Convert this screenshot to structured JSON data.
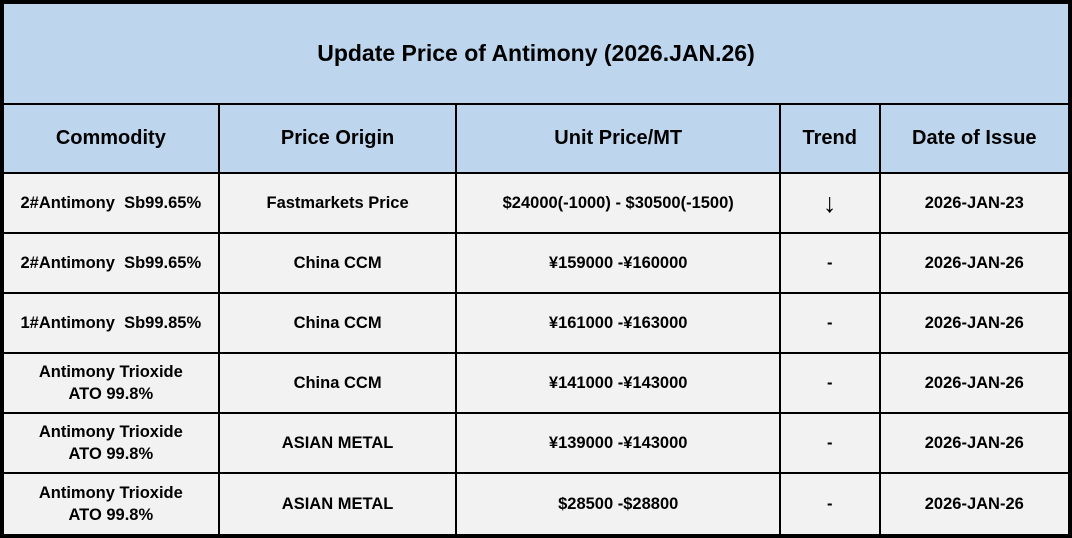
{
  "title": "Update Price of Antimony (2026.JAN.26)",
  "colors": {
    "header_bg": "#BDD6EE",
    "row_bg": "#F2F2F2",
    "border": "#000000",
    "text": "#000000"
  },
  "table": {
    "headers": {
      "commodity": "Commodity",
      "origin": "Price Origin",
      "price": "Unit Price/MT",
      "trend": "Trend",
      "date": "Date of Issue"
    },
    "rows": [
      {
        "commodity": "2#Antimony  Sb99.65%",
        "origin": "Fastmarkets Price",
        "price": "$24000(-1000) - $30500(-1500)",
        "trend": "↓",
        "date": "2026-JAN-23"
      },
      {
        "commodity": "2#Antimony  Sb99.65%",
        "origin": "China CCM",
        "price": "¥159000 -¥160000",
        "trend": "-",
        "date": "2026-JAN-26"
      },
      {
        "commodity": "1#Antimony  Sb99.85%",
        "origin": "China CCM",
        "price": "¥161000 -¥163000",
        "trend": "-",
        "date": "2026-JAN-26"
      },
      {
        "commodity": "Antimony Trioxide\nATO 99.8%",
        "origin": "China CCM",
        "price": "¥141000 -¥143000",
        "trend": "-",
        "date": "2026-JAN-26"
      },
      {
        "commodity": "Antimony Trioxide\nATO 99.8%",
        "origin": "ASIAN METAL",
        "price": "¥139000 -¥143000",
        "trend": "-",
        "date": "2026-JAN-26"
      },
      {
        "commodity": "Antimony Trioxide\nATO 99.8%",
        "origin": "ASIAN METAL",
        "price": "$28500 -$28800",
        "trend": "-",
        "date": "2026-JAN-26"
      }
    ]
  }
}
